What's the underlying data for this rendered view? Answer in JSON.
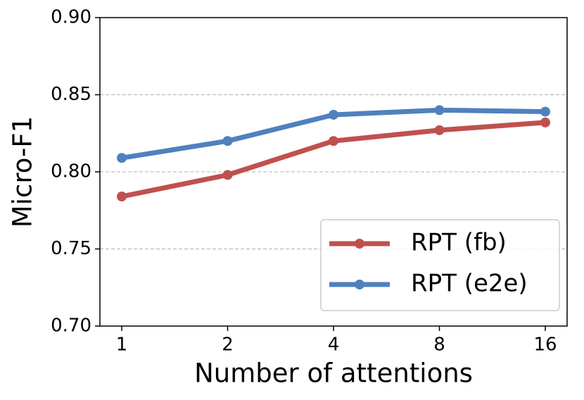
{
  "chart_data": {
    "type": "line",
    "xlabel": "Number of attentions",
    "ylabel": "Micro-F1",
    "categories": [
      "1",
      "2",
      "4",
      "8",
      "16"
    ],
    "series": [
      {
        "name": "RPT (fb)",
        "color": "#c0504d",
        "values": [
          0.784,
          0.798,
          0.82,
          0.827,
          0.832
        ]
      },
      {
        "name": "RPT (e2e)",
        "color": "#4f81bd",
        "values": [
          0.809,
          0.82,
          0.837,
          0.84,
          0.839
        ]
      }
    ],
    "ylim": [
      0.7,
      0.9
    ],
    "yticks": [
      {
        "value": 0.7,
        "label": "0.70"
      },
      0.75,
      {
        "value": 0.8,
        "label": "0.80"
      },
      0.85,
      {
        "value": 0.9,
        "label": "0.90"
      }
    ],
    "grid": true,
    "legend": "lower right"
  }
}
